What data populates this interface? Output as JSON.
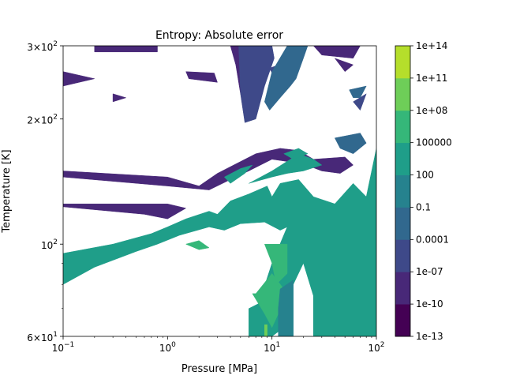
{
  "chart_data": {
    "type": "heatmap",
    "title": "Entropy: Absolute error",
    "xlabel": "Pressure [MPa]",
    "ylabel": "Temperature [K]",
    "x_scale": "log",
    "y_scale": "log",
    "xlim": [
      0.1,
      100
    ],
    "ylim": [
      60,
      300
    ],
    "x_ticks": [
      {
        "value": 0.1,
        "base": "10",
        "exp": "−1"
      },
      {
        "value": 1,
        "base": "10",
        "exp": "0"
      },
      {
        "value": 10,
        "base": "10",
        "exp": "1"
      },
      {
        "value": 100,
        "base": "10",
        "exp": "2"
      }
    ],
    "y_ticks": [
      {
        "value": 60,
        "coef": "6",
        "base": "10",
        "exp": "1"
      },
      {
        "value": 100,
        "coef": "",
        "base": "10",
        "exp": "2"
      },
      {
        "value": 200,
        "coef": "2",
        "base": "10",
        "exp": "2"
      },
      {
        "value": 300,
        "coef": "3",
        "base": "10",
        "exp": "2"
      }
    ],
    "colorbar": {
      "levels": [
        "1e-13",
        "1e-10",
        "1e-07",
        "0.0001",
        "0.1",
        "100",
        "100000",
        "1e+08",
        "1e+11",
        "1e+14"
      ],
      "colors": [
        "#440154",
        "#482878",
        "#3e4989",
        "#31688e",
        "#26828e",
        "#1f9e89",
        "#35b779",
        "#6ece58",
        "#b5de2b",
        "#fde725"
      ]
    },
    "regions": [
      {
        "level": 1,
        "polygon": [
          [
            0.2,
            300
          ],
          [
            0.8,
            300
          ],
          [
            0.8,
            290
          ],
          [
            0.2,
            290
          ]
        ]
      },
      {
        "level": 1,
        "polygon": [
          [
            0.1,
            260
          ],
          [
            0.2,
            250
          ],
          [
            0.1,
            240
          ]
        ]
      },
      {
        "level": 1,
        "polygon": [
          [
            1.5,
            260
          ],
          [
            2.8,
            258
          ],
          [
            3.0,
            245
          ],
          [
            1.6,
            250
          ]
        ]
      },
      {
        "level": 1,
        "polygon": [
          [
            0.3,
            230
          ],
          [
            0.4,
            225
          ],
          [
            0.3,
            220
          ]
        ]
      },
      {
        "level": 1,
        "polygon": [
          [
            4.0,
            300
          ],
          [
            8.0,
            300
          ],
          [
            7.0,
            250
          ],
          [
            6.0,
            210
          ],
          [
            5.0,
            230
          ],
          [
            4.5,
            270
          ]
        ]
      },
      {
        "level": 1,
        "polygon": [
          [
            25,
            300
          ],
          [
            70,
            300
          ],
          [
            60,
            280
          ],
          [
            30,
            285
          ]
        ]
      },
      {
        "level": 1,
        "polygon": [
          [
            40,
            280
          ],
          [
            60,
            270
          ],
          [
            50,
            260
          ]
        ]
      },
      {
        "level": 1,
        "polygon": [
          [
            0.1,
            150
          ],
          [
            1.0,
            145
          ],
          [
            2.0,
            138
          ],
          [
            3.0,
            148
          ],
          [
            5.0,
            158
          ],
          [
            7.0,
            165
          ],
          [
            12.0,
            170
          ],
          [
            18.0,
            168
          ],
          [
            25.0,
            160
          ],
          [
            50.0,
            162
          ],
          [
            60.0,
            155
          ],
          [
            45.0,
            148
          ],
          [
            30.0,
            150
          ],
          [
            20.0,
            156
          ],
          [
            10.0,
            160
          ],
          [
            6.0,
            150
          ],
          [
            4.0,
            143
          ],
          [
            2.5,
            135
          ],
          [
            1.0,
            138
          ],
          [
            0.1,
            145
          ]
        ]
      },
      {
        "level": 1,
        "polygon": [
          [
            0.1,
            123
          ],
          [
            0.6,
            118
          ],
          [
            1.0,
            115
          ],
          [
            1.5,
            122
          ],
          [
            1.0,
            125
          ],
          [
            0.1,
            125
          ]
        ]
      },
      {
        "level": 1,
        "polygon": [
          [
            25,
            78
          ],
          [
            30,
            78
          ],
          [
            30,
            60
          ],
          [
            25,
            60
          ]
        ]
      },
      {
        "level": 2,
        "polygon": [
          [
            4.8,
            300
          ],
          [
            10.0,
            300
          ],
          [
            10.5,
            280
          ],
          [
            8.5,
            240
          ],
          [
            7.0,
            200
          ],
          [
            5.5,
            196
          ],
          [
            5.0,
            230
          ]
        ]
      },
      {
        "level": 2,
        "polygon": [
          [
            9.5,
            265
          ],
          [
            14.0,
            275
          ],
          [
            12.0,
            260
          ],
          [
            10.0,
            258
          ]
        ]
      },
      {
        "level": 2,
        "polygon": [
          [
            60,
            220
          ],
          [
            80,
            230
          ],
          [
            70,
            210
          ]
        ]
      },
      {
        "level": 3,
        "polygon": [
          [
            14.0,
            300
          ],
          [
            22.0,
            300
          ],
          [
            20.0,
            280
          ],
          [
            17.0,
            250
          ],
          [
            15.0,
            240
          ],
          [
            12.0,
            225
          ],
          [
            9.5,
            210
          ],
          [
            8.5,
            220
          ],
          [
            10.0,
            260
          ]
        ]
      },
      {
        "level": 3,
        "polygon": [
          [
            55,
            235
          ],
          [
            80,
            240
          ],
          [
            70,
            225
          ],
          [
            60,
            225
          ]
        ]
      },
      {
        "level": 3,
        "polygon": [
          [
            40,
            180
          ],
          [
            70,
            185
          ],
          [
            80,
            175
          ],
          [
            60,
            165
          ],
          [
            45,
            170
          ]
        ]
      },
      {
        "level": 5,
        "polygon": [
          [
            3.5,
            145
          ],
          [
            5.0,
            152
          ],
          [
            6.5,
            155
          ],
          [
            5.5,
            148
          ],
          [
            4.0,
            140
          ]
        ]
      },
      {
        "level": 5,
        "polygon": [
          [
            0.1,
            95
          ],
          [
            0.3,
            100
          ],
          [
            0.7,
            106
          ],
          [
            1.0,
            110
          ],
          [
            1.5,
            115
          ],
          [
            2.5,
            120
          ],
          [
            3.0,
            118
          ],
          [
            4.0,
            127
          ],
          [
            6.0,
            132
          ],
          [
            9.0,
            138
          ],
          [
            10.0,
            130
          ],
          [
            12.0,
            140
          ],
          [
            18.0,
            143
          ],
          [
            25.0,
            130
          ],
          [
            40.0,
            125
          ],
          [
            60.0,
            140
          ],
          [
            80.0,
            130
          ],
          [
            100.0,
            170
          ],
          [
            100.0,
            60
          ],
          [
            25.0,
            60
          ],
          [
            25.0,
            75
          ],
          [
            20.0,
            90
          ],
          [
            16.0,
            80
          ],
          [
            13.0,
            63
          ],
          [
            10.0,
            60
          ],
          [
            6.0,
            60
          ],
          [
            6.0,
            70
          ],
          [
            7.5,
            72
          ],
          [
            10.0,
            90
          ],
          [
            14.0,
            110
          ],
          [
            12.0,
            108
          ],
          [
            8.5,
            113
          ],
          [
            5.0,
            112
          ],
          [
            3.5,
            108
          ],
          [
            2.5,
            110
          ],
          [
            1.3,
            105
          ],
          [
            0.8,
            100
          ],
          [
            0.5,
            96
          ],
          [
            0.2,
            88
          ],
          [
            0.1,
            80
          ]
        ]
      },
      {
        "level": 5,
        "polygon": [
          [
            6.0,
            140
          ],
          [
            10.0,
            150
          ],
          [
            15.0,
            160
          ],
          [
            18.0,
            165
          ],
          [
            25.0,
            160
          ],
          [
            30.0,
            155
          ],
          [
            20.0,
            150
          ],
          [
            14.0,
            148
          ],
          [
            10.0,
            145
          ]
        ]
      },
      {
        "level": 5,
        "polygon": [
          [
            13.0,
            165
          ],
          [
            18.0,
            170
          ],
          [
            22.0,
            165
          ],
          [
            16.0,
            160
          ]
        ]
      },
      {
        "level": 6,
        "polygon": [
          [
            1.5,
            100
          ],
          [
            2.0,
            102
          ],
          [
            2.5,
            98
          ],
          [
            2.0,
            97
          ]
        ]
      },
      {
        "level": 6,
        "polygon": [
          [
            8.5,
            100
          ],
          [
            14.0,
            100
          ],
          [
            14.0,
            85
          ],
          [
            11.0,
            80
          ],
          [
            10.0,
            90
          ]
        ]
      },
      {
        "level": 6,
        "polygon": [
          [
            7.0,
            76
          ],
          [
            10.0,
            85
          ],
          [
            13.0,
            78
          ],
          [
            11.5,
            68
          ],
          [
            10.0,
            63
          ],
          [
            8.5,
            68
          ],
          [
            6.5,
            76
          ]
        ]
      },
      {
        "level": 4,
        "polygon": [
          [
            12.0,
            78
          ],
          [
            16.0,
            82
          ],
          [
            16.0,
            60
          ],
          [
            11.5,
            60
          ],
          [
            11.5,
            70
          ]
        ]
      },
      {
        "level": 7,
        "polygon": [
          [
            8.5,
            64
          ],
          [
            9.0,
            64
          ],
          [
            9.0,
            60
          ],
          [
            8.5,
            60
          ]
        ]
      }
    ]
  }
}
